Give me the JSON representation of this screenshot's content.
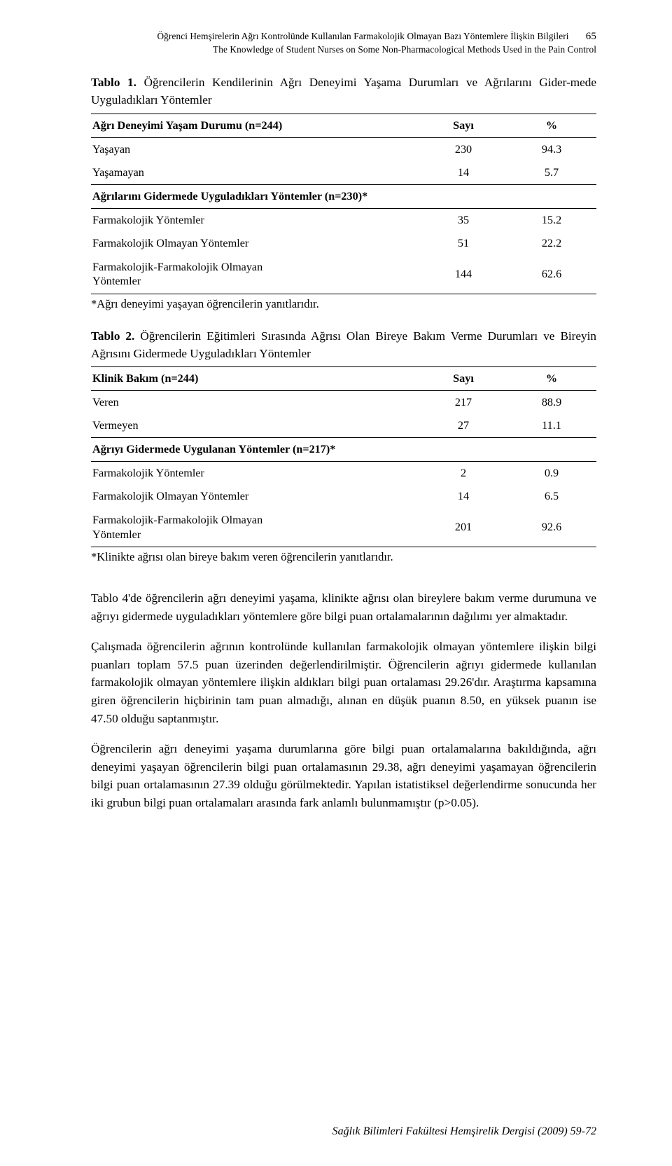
{
  "header": {
    "line1": "Öğrenci Hemşirelerin Ağrı Kontrolünde Kullanılan Farmakolojik Olmayan Bazı Yöntemlere İlişkin Bilgileri",
    "line2": "The Knowledge of Student Nurses on Some Non-Pharmacological Methods Used in the Pain Control",
    "page_number": "65"
  },
  "table1": {
    "caption_label": "Tablo 1.",
    "caption_rest": "Öğrencilerin Kendilerinin Ağrı Deneyimi Yaşama Durumları ve Ağrılarını Gider-mede Uyguladıkları Yöntemler",
    "col1": "Ağrı Deneyimi Yaşam Durumu (n=244)",
    "col2": "Sayı",
    "col3": "%",
    "rows_a": [
      {
        "label": "Yaşayan",
        "n": "230",
        "pct": "94.3"
      },
      {
        "label": "Yaşamayan",
        "n": "14",
        "pct": "5.7"
      }
    ],
    "subhead": "Ağrılarını Gidermede Uyguladıkları Yöntemler (n=230)*",
    "rows_b": [
      {
        "label": "Farmakolojik Yöntemler",
        "n": "35",
        "pct": "15.2"
      },
      {
        "label": "Farmakolojik Olmayan Yöntemler",
        "n": "51",
        "pct": "22.2"
      },
      {
        "label": "Farmakolojik-Farmakolojik Olmayan\nYöntemler",
        "n": "144",
        "pct": "62.6"
      }
    ],
    "footnote": "*Ağrı deneyimi yaşayan öğrencilerin yanıtlarıdır."
  },
  "table2": {
    "caption_label": "Tablo 2.",
    "caption_rest": "Öğrencilerin Eğitimleri Sırasında Ağrısı Olan Bireye Bakım Verme  Durumları ve Bireyin Ağrısını Gidermede Uyguladıkları Yöntemler",
    "col1": "Klinik Bakım (n=244)",
    "col2": "Sayı",
    "col3": "%",
    "rows_a": [
      {
        "label": "Veren",
        "n": "217",
        "pct": "88.9"
      },
      {
        "label": "Vermeyen",
        "n": "27",
        "pct": "11.1"
      }
    ],
    "subhead": "Ağrıyı Gidermede Uygulanan Yöntemler (n=217)*",
    "rows_b": [
      {
        "label": "Farmakolojik Yöntemler",
        "n": "2",
        "pct": "0.9"
      },
      {
        "label": "Farmakolojik Olmayan Yöntemler",
        "n": "14",
        "pct": "6.5"
      },
      {
        "label": "Farmakolojik-Farmakolojik Olmayan\nYöntemler",
        "n": "201",
        "pct": "92.6"
      }
    ],
    "footnote": "*Klinikte ağrısı olan bireye bakım veren öğrencilerin yanıtlarıdır."
  },
  "paragraphs": [
    "Tablo 4'de öğrencilerin ağrı deneyimi yaşama, klinikte ağrısı olan bireylere bakım verme durumuna ve ağrıyı gidermede uyguladıkları yöntemlere göre bilgi puan ortalamalarının dağılımı yer almaktadır.",
    "Çalışmada öğrencilerin ağrının kontrolünde kullanılan farmakolojik olmayan yöntemlere ilişkin bilgi puanları toplam 57.5 puan üzerinden değerlendirilmiştir. Öğrencilerin ağrıyı gidermede kullanılan farmakolojik olmayan yöntemlere ilişkin aldıkları bilgi puan ortalaması 29.26'dır. Araştırma kapsamına giren öğrencilerin hiçbirinin tam puan almadığı, alınan en düşük puanın 8.50, en yüksek puanın ise 47.50 olduğu saptanmıştır.",
    "Öğrencilerin ağrı deneyimi yaşama durumlarına göre bilgi puan ortalamalarına bakıldığında, ağrı deneyimi yaşayan öğrencilerin bilgi puan ortalamasının 29.38, ağrı deneyimi yaşamayan öğrencilerin bilgi puan ortalamasının 27.39 olduğu görülmektedir. Yapılan istatistiksel değerlendirme sonucunda her iki grubun bilgi puan ortalamaları arasında fark anlamlı bulunmamıştır (p>0.05)."
  ],
  "footer": "Sağlık Bilimleri Fakültesi Hemşirelik Dergisi (2009) 59-72"
}
